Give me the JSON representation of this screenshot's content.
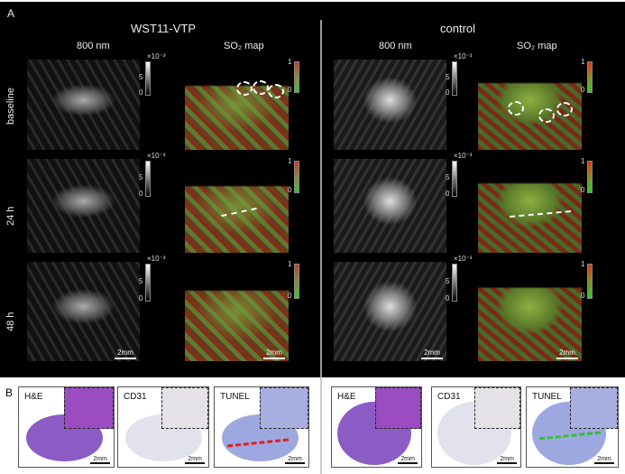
{
  "panel_a": {
    "label": "A",
    "groups": [
      {
        "title": "WST11-VTP",
        "col1": "800 nm",
        "col2": "SO₂ map"
      },
      {
        "title": "control",
        "col1": "800 nm",
        "col2": "SO₂ map"
      }
    ],
    "rows": [
      "baseline",
      "24 h",
      "48 h"
    ],
    "gray_colorbar": {
      "exp": "×10⁻³",
      "max": "5",
      "min": "0"
    },
    "so2_colorbar": {
      "max": "1",
      "min": "0"
    },
    "scale": "2mm"
  },
  "panel_b": {
    "label": "B",
    "stains": [
      "H&E",
      "CD31",
      "TUNEL"
    ],
    "scale": "2mm",
    "line_colors": {
      "wst11": "#e02020",
      "control": "#30c030"
    }
  }
}
